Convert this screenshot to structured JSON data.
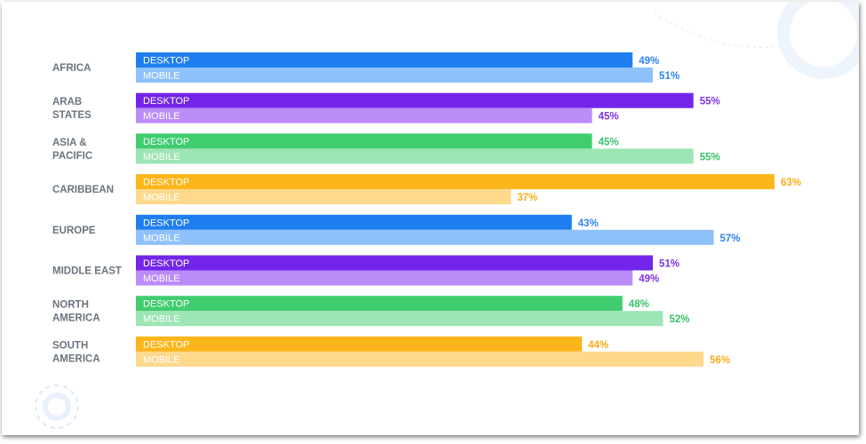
{
  "chart_data": {
    "type": "bar",
    "orientation": "horizontal",
    "grouped": true,
    "xlim": [
      0,
      63
    ],
    "grid": false,
    "legend": "none",
    "categories": [
      [
        "AFRICA"
      ],
      [
        "ARAB",
        "STATES"
      ],
      [
        "ASIA &",
        "PACIFIC"
      ],
      [
        "CARIBBEAN"
      ],
      [
        "EUROPE"
      ],
      [
        "MIDDLE EAST"
      ],
      [
        "NORTH",
        "AMERICA"
      ],
      [
        "SOUTH",
        "AMERICA"
      ]
    ],
    "series": [
      {
        "name": "DESKTOP",
        "values": [
          49,
          55,
          45,
          63,
          43,
          51,
          48,
          44
        ]
      },
      {
        "name": "MOBILE",
        "values": [
          51,
          45,
          55,
          37,
          57,
          49,
          52,
          56
        ]
      }
    ],
    "value_labels": [
      [
        "49%",
        "51%"
      ],
      [
        "55%",
        "45%"
      ],
      [
        "45%",
        "55%"
      ],
      [
        "63%",
        "37%"
      ],
      [
        "43%",
        "57%"
      ],
      [
        "51%",
        "49%"
      ],
      [
        "48%",
        "52%"
      ],
      [
        "44%",
        "56%"
      ]
    ],
    "palette": [
      {
        "desktop": "#1e7ef0",
        "mobile": "#8fc1fb",
        "label": "#2f84ea"
      },
      {
        "desktop": "#7425ea",
        "mobile": "#bb8cf8",
        "label": "#7e31e8"
      },
      {
        "desktop": "#40cd70",
        "mobile": "#9de5b4",
        "label": "#38c268"
      },
      {
        "desktop": "#fcb51a",
        "mobile": "#fed98c",
        "label": "#f5ac18"
      },
      {
        "desktop": "#1e7ef0",
        "mobile": "#8fc1fb",
        "label": "#2f84ea"
      },
      {
        "desktop": "#7425ea",
        "mobile": "#bb8cf8",
        "label": "#7e31e8"
      },
      {
        "desktop": "#40cd70",
        "mobile": "#9de5b4",
        "label": "#38c268"
      },
      {
        "desktop": "#fcb51a",
        "mobile": "#fed98c",
        "label": "#f5ac18"
      }
    ],
    "category_label_color": "#6b7480",
    "bar_text_color": "#ffffff",
    "background": "#ffffff"
  }
}
